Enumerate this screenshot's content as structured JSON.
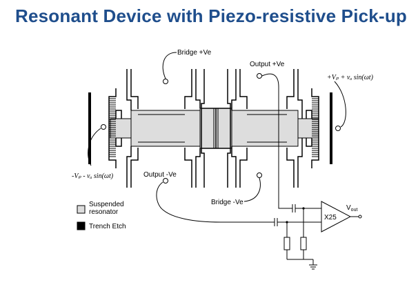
{
  "title": "Resonant Device with Piezo-resistive Pick-up",
  "labels": {
    "bridge_pos": "Bridge +Ve",
    "bridge_neg": "Bridge -Ve",
    "output_pos": "Output +Ve",
    "output_neg": "Output -Ve",
    "drive_pos": "+Vₚ + vₐ sin(ωt)",
    "drive_neg": "-Vₚ - vₐ sin(ωt)",
    "amp_gain": "X25",
    "vout": "Vout"
  },
  "legend": [
    {
      "label": "Suspended\nresonator",
      "swatch": "#dddddd"
    },
    {
      "label": "Trench Etch",
      "swatch": "#000000"
    }
  ],
  "colors": {
    "title": "#1f4e8c",
    "resonator_fill": "#dddddd",
    "trench": "#000000"
  }
}
